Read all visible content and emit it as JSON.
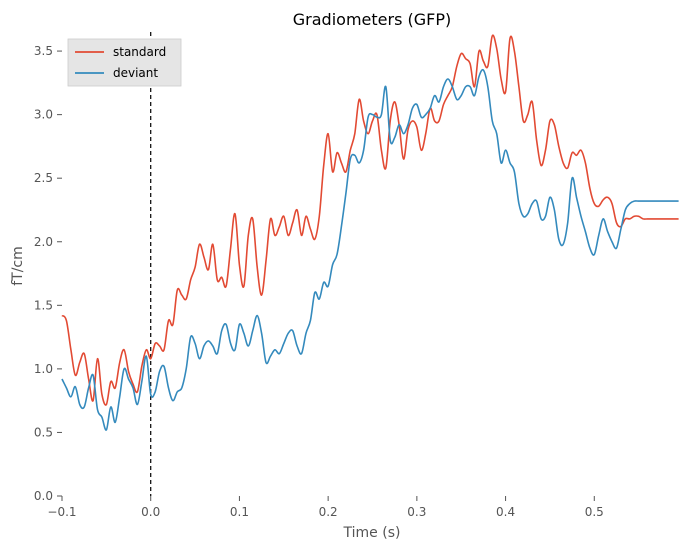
{
  "chart_data": {
    "type": "line",
    "title": "Gradiometers (GFP)",
    "xlabel": "Time (s)",
    "ylabel": "fT/cm",
    "xlim": [
      -0.1,
      0.6
    ],
    "ylim": [
      0.0,
      3.65
    ],
    "xticks": [
      -0.1,
      0.0,
      0.1,
      0.2,
      0.3,
      0.4,
      0.5
    ],
    "xtick_labels": [
      "−0.1",
      "0.0",
      "0.1",
      "0.2",
      "0.3",
      "0.4",
      "0.5"
    ],
    "yticks": [
      0.0,
      0.5,
      1.0,
      1.5,
      2.0,
      2.5,
      3.0,
      3.5
    ],
    "ytick_labels": [
      "0.0",
      "0.5",
      "1.0",
      "1.5",
      "2.0",
      "2.5",
      "3.0",
      "3.5"
    ],
    "grid": false,
    "legend_position": "top-left",
    "annotations": [
      {
        "type": "vertical-dashed-line",
        "x": 0.0,
        "color": "#000000"
      }
    ],
    "series": [
      {
        "name": "standard",
        "color": "#e24a33",
        "x": [
          -0.1,
          -0.095,
          -0.09,
          -0.085,
          -0.08,
          -0.075,
          -0.07,
          -0.065,
          -0.06,
          -0.055,
          -0.05,
          -0.045,
          -0.04,
          -0.035,
          -0.03,
          -0.025,
          -0.02,
          -0.015,
          -0.01,
          -0.005,
          0.0,
          0.005,
          0.01,
          0.015,
          0.02,
          0.025,
          0.03,
          0.035,
          0.04,
          0.045,
          0.05,
          0.055,
          0.06,
          0.065,
          0.07,
          0.075,
          0.08,
          0.085,
          0.09,
          0.095,
          0.1,
          0.105,
          0.11,
          0.115,
          0.12,
          0.125,
          0.13,
          0.135,
          0.14,
          0.145,
          0.15,
          0.155,
          0.16,
          0.165,
          0.17,
          0.175,
          0.18,
          0.185,
          0.19,
          0.195,
          0.2,
          0.205,
          0.21,
          0.215,
          0.22,
          0.225,
          0.23,
          0.235,
          0.24,
          0.245,
          0.25,
          0.255,
          0.26,
          0.265,
          0.27,
          0.275,
          0.28,
          0.285,
          0.29,
          0.295,
          0.3,
          0.305,
          0.31,
          0.315,
          0.32,
          0.325,
          0.33,
          0.335,
          0.34,
          0.345,
          0.35,
          0.355,
          0.36,
          0.365,
          0.37,
          0.375,
          0.38,
          0.385,
          0.39,
          0.395,
          0.4,
          0.405,
          0.41,
          0.415,
          0.42,
          0.425,
          0.43,
          0.435,
          0.44,
          0.445,
          0.45,
          0.455,
          0.46,
          0.465,
          0.47,
          0.475,
          0.48,
          0.485,
          0.49,
          0.495,
          0.5,
          0.505,
          0.51,
          0.515,
          0.52,
          0.525,
          0.53,
          0.535,
          0.54,
          0.545,
          0.55,
          0.555,
          0.56,
          0.565,
          0.57,
          0.575,
          0.58,
          0.585,
          0.59,
          0.595
        ],
        "values": [
          1.42,
          1.38,
          1.15,
          0.95,
          1.05,
          1.12,
          0.92,
          0.75,
          1.08,
          0.8,
          0.72,
          0.9,
          0.85,
          1.05,
          1.15,
          0.98,
          0.88,
          0.82,
          1.02,
          1.15,
          1.08,
          1.2,
          1.18,
          1.15,
          1.38,
          1.35,
          1.62,
          1.58,
          1.55,
          1.7,
          1.8,
          1.98,
          1.88,
          1.78,
          1.98,
          1.7,
          1.72,
          1.65,
          1.95,
          2.22,
          1.82,
          1.65,
          2.05,
          2.18,
          1.8,
          1.58,
          1.85,
          2.18,
          2.05,
          2.12,
          2.2,
          2.05,
          2.15,
          2.25,
          2.05,
          2.2,
          2.1,
          2.02,
          2.2,
          2.6,
          2.85,
          2.55,
          2.7,
          2.62,
          2.55,
          2.72,
          2.85,
          3.12,
          2.95,
          2.85,
          2.95,
          3.0,
          2.72,
          2.58,
          2.95,
          3.1,
          2.92,
          2.65,
          2.88,
          2.95,
          2.9,
          2.72,
          2.85,
          3.05,
          2.95,
          2.95,
          3.08,
          3.15,
          3.22,
          3.38,
          3.48,
          3.44,
          3.4,
          3.22,
          3.5,
          3.42,
          3.38,
          3.62,
          3.52,
          3.28,
          3.18,
          3.6,
          3.5,
          3.22,
          2.95,
          3.0,
          3.1,
          2.8,
          2.6,
          2.72,
          2.95,
          2.92,
          2.75,
          2.62,
          2.58,
          2.7,
          2.68,
          2.72,
          2.62,
          2.42,
          2.3,
          2.28,
          2.33,
          2.35,
          2.3,
          2.15,
          2.12,
          2.18,
          2.18,
          2.2,
          2.2,
          2.18,
          2.18,
          2.18,
          2.18,
          2.18,
          2.18,
          2.18,
          2.18,
          2.18
        ]
      },
      {
        "name": "deviant",
        "color": "#348abd",
        "x": [
          -0.1,
          -0.095,
          -0.09,
          -0.085,
          -0.08,
          -0.075,
          -0.07,
          -0.065,
          -0.06,
          -0.055,
          -0.05,
          -0.045,
          -0.04,
          -0.035,
          -0.03,
          -0.025,
          -0.02,
          -0.015,
          -0.01,
          -0.005,
          0.0,
          0.005,
          0.01,
          0.015,
          0.02,
          0.025,
          0.03,
          0.035,
          0.04,
          0.045,
          0.05,
          0.055,
          0.06,
          0.065,
          0.07,
          0.075,
          0.08,
          0.085,
          0.09,
          0.095,
          0.1,
          0.105,
          0.11,
          0.115,
          0.12,
          0.125,
          0.13,
          0.135,
          0.14,
          0.145,
          0.15,
          0.155,
          0.16,
          0.165,
          0.17,
          0.175,
          0.18,
          0.185,
          0.19,
          0.195,
          0.2,
          0.205,
          0.21,
          0.215,
          0.22,
          0.225,
          0.23,
          0.235,
          0.24,
          0.245,
          0.25,
          0.255,
          0.26,
          0.265,
          0.27,
          0.275,
          0.28,
          0.285,
          0.29,
          0.295,
          0.3,
          0.305,
          0.31,
          0.315,
          0.32,
          0.325,
          0.33,
          0.335,
          0.34,
          0.345,
          0.35,
          0.355,
          0.36,
          0.365,
          0.37,
          0.375,
          0.38,
          0.385,
          0.39,
          0.395,
          0.4,
          0.405,
          0.41,
          0.415,
          0.42,
          0.425,
          0.43,
          0.435,
          0.44,
          0.445,
          0.45,
          0.455,
          0.46,
          0.465,
          0.47,
          0.475,
          0.48,
          0.485,
          0.49,
          0.495,
          0.5,
          0.505,
          0.51,
          0.515,
          0.52,
          0.525,
          0.53,
          0.535,
          0.54,
          0.545,
          0.55,
          0.555,
          0.56,
          0.565,
          0.57,
          0.575,
          0.58,
          0.585,
          0.59,
          0.595
        ],
        "values": [
          0.92,
          0.85,
          0.78,
          0.86,
          0.72,
          0.7,
          0.85,
          0.95,
          0.68,
          0.62,
          0.52,
          0.7,
          0.58,
          0.78,
          1.0,
          0.92,
          0.85,
          0.72,
          0.9,
          1.1,
          0.8,
          0.82,
          0.98,
          1.02,
          0.85,
          0.75,
          0.82,
          0.85,
          1.0,
          1.25,
          1.2,
          1.08,
          1.18,
          1.22,
          1.18,
          1.12,
          1.3,
          1.35,
          1.2,
          1.15,
          1.35,
          1.28,
          1.18,
          1.3,
          1.42,
          1.28,
          1.05,
          1.1,
          1.15,
          1.12,
          1.2,
          1.28,
          1.3,
          1.18,
          1.12,
          1.28,
          1.38,
          1.6,
          1.55,
          1.68,
          1.65,
          1.82,
          1.9,
          2.12,
          2.38,
          2.65,
          2.68,
          2.62,
          2.72,
          2.98,
          3.0,
          2.98,
          3.0,
          3.22,
          2.8,
          2.82,
          2.92,
          2.85,
          2.92,
          3.05,
          3.08,
          2.98,
          3.0,
          3.05,
          3.15,
          3.1,
          3.22,
          3.28,
          3.22,
          3.12,
          3.15,
          3.22,
          3.22,
          3.15,
          3.3,
          3.35,
          3.22,
          2.95,
          2.85,
          2.62,
          2.72,
          2.62,
          2.55,
          2.3,
          2.2,
          2.22,
          2.3,
          2.32,
          2.18,
          2.2,
          2.35,
          2.25,
          2.02,
          1.98,
          2.15,
          2.5,
          2.35,
          2.2,
          2.08,
          1.95,
          1.9,
          2.05,
          2.18,
          2.08,
          2.0,
          1.95,
          2.1,
          2.25,
          2.3,
          2.32,
          2.32,
          2.32,
          2.32,
          2.32,
          2.32,
          2.32,
          2.32,
          2.32,
          2.32,
          2.32
        ]
      }
    ]
  }
}
